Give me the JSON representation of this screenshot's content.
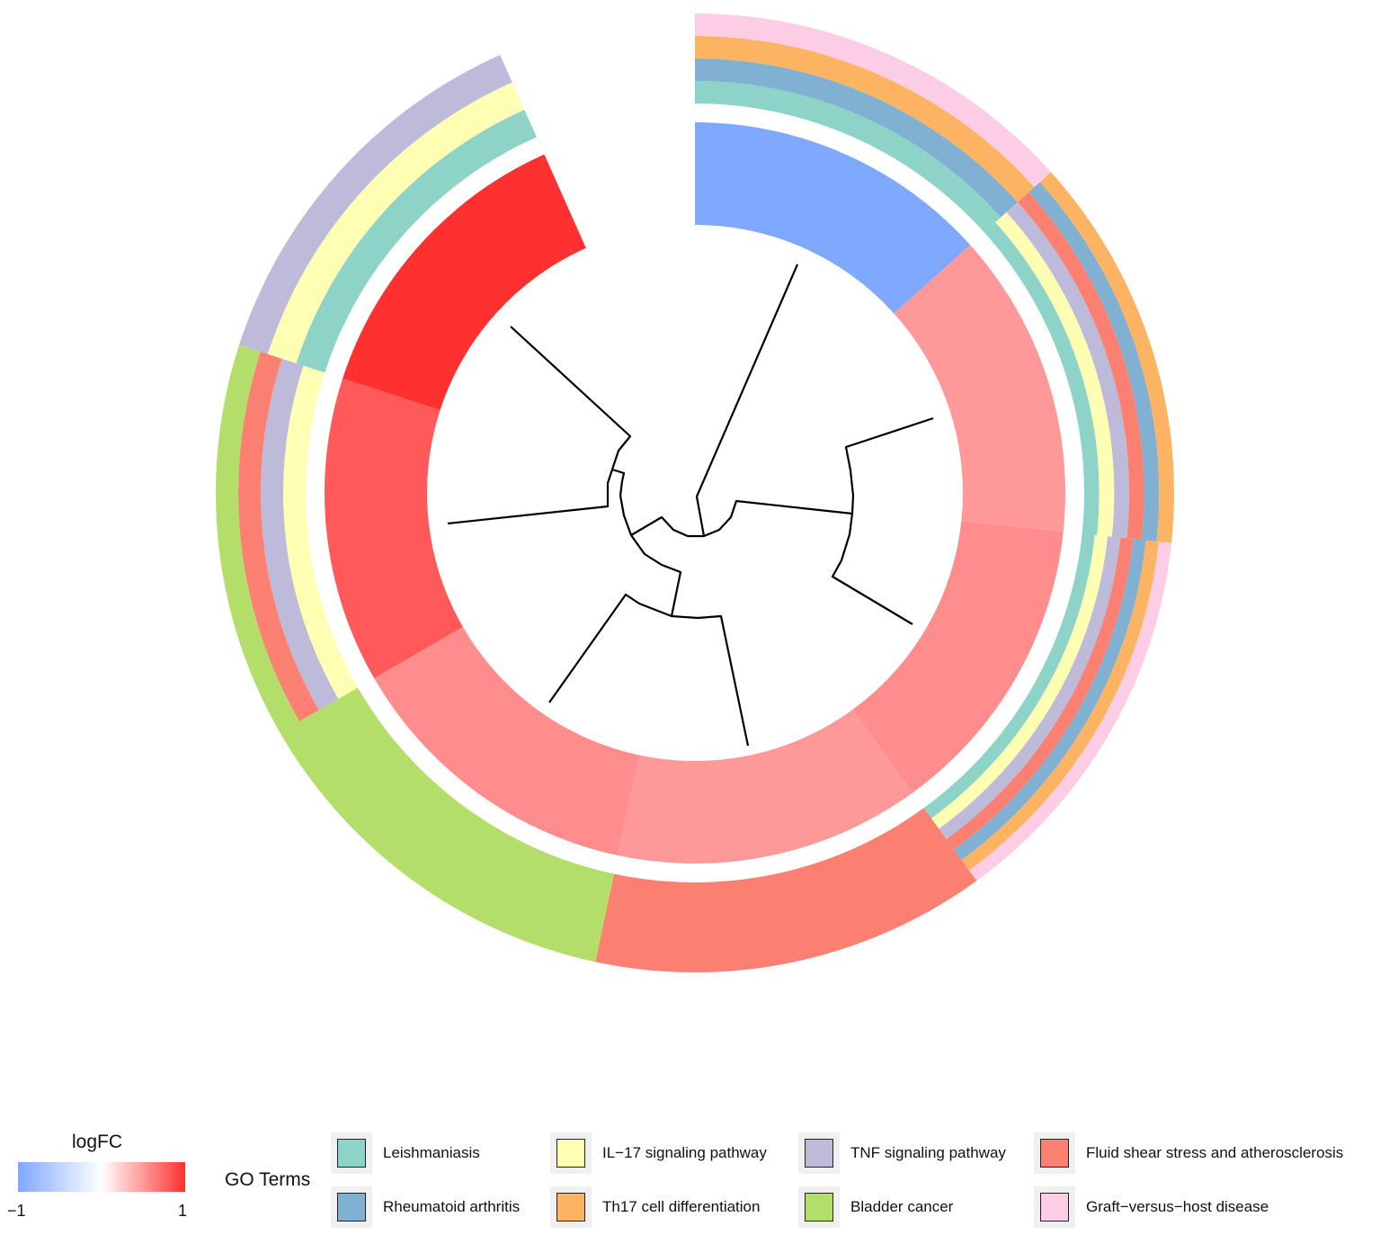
{
  "chart_data": {
    "type": "circular-cluster",
    "legend_logfc": {
      "title": "logFC",
      "min_label": "−1",
      "max_label": "1",
      "range": [
        -1,
        1
      ],
      "colors": {
        "low": "#7FA8FF",
        "mid": "#FFFFFF",
        "high": "#FF3030"
      }
    },
    "legend_terms": {
      "title": "GO Terms",
      "items": [
        {
          "name": "Leishmaniasis",
          "color": "#8DD3C7"
        },
        {
          "name": "Rheumatoid arthritis",
          "color": "#80B1D3"
        },
        {
          "name": "IL−17 signaling pathway",
          "color": "#FFFFB3"
        },
        {
          "name": "Th17 cell differentiation",
          "color": "#FDB462"
        },
        {
          "name": "TNF signaling pathway",
          "color": "#BEBADA"
        },
        {
          "name": "Bladder cancer",
          "color": "#B3DE69"
        },
        {
          "name": "Fluid shear stress and atherosclerosis",
          "color": "#FB8072"
        },
        {
          "name": "Graft−versus−host disease",
          "color": "#FCCDE5"
        }
      ]
    },
    "term_ring_order": [
      "Leishmaniasis",
      "IL−17 signaling pathway",
      "TNF signaling pathway",
      "Fluid shear stress and atherosclerosis",
      "Rheumatoid arthritis",
      "Th17 cell differentiation",
      "Bladder cancer",
      "Graft−versus−host disease"
    ],
    "genes": [
      {
        "logFC": -1.0,
        "terms": [
          "Leishmaniasis",
          "Rheumatoid arthritis",
          "Th17 cell differentiation",
          "Graft−versus−host disease"
        ]
      },
      {
        "logFC": 0.5,
        "terms": [
          "Leishmaniasis",
          "IL−17 signaling pathway",
          "TNF signaling pathway",
          "Fluid shear stress and atherosclerosis",
          "Rheumatoid arthritis",
          "Th17 cell differentiation"
        ]
      },
      {
        "logFC": 0.55,
        "terms": [
          "Leishmaniasis",
          "IL−17 signaling pathway",
          "TNF signaling pathway",
          "Fluid shear stress and atherosclerosis",
          "Rheumatoid arthritis",
          "Th17 cell differentiation",
          "Graft−versus−host disease"
        ]
      },
      {
        "logFC": 0.5,
        "terms": [
          "Fluid shear stress and atherosclerosis"
        ]
      },
      {
        "logFC": 0.55,
        "terms": [
          "Bladder cancer"
        ]
      },
      {
        "logFC": 0.8,
        "terms": [
          "IL−17 signaling pathway",
          "TNF signaling pathway",
          "Fluid shear stress and atherosclerosis",
          "Bladder cancer"
        ]
      },
      {
        "logFC": 1.0,
        "terms": [
          "Leishmaniasis",
          "IL−17 signaling pathway",
          "TNF signaling pathway"
        ]
      }
    ]
  }
}
